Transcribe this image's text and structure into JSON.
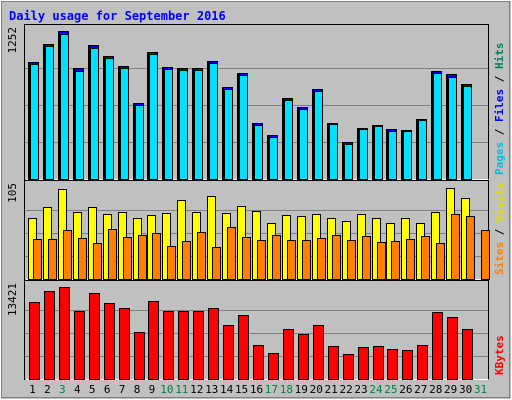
{
  "chart_data": {
    "type": "bar",
    "title": "Daily usage for September 2016",
    "categories": [
      "1",
      "2",
      "3",
      "4",
      "5",
      "6",
      "7",
      "8",
      "9",
      "10",
      "11",
      "12",
      "13",
      "14",
      "15",
      "16",
      "17",
      "18",
      "19",
      "20",
      "21",
      "22",
      "23",
      "24",
      "25",
      "26",
      "27",
      "28",
      "29",
      "30",
      "31"
    ],
    "weekend_days": [
      "3",
      "10",
      "11",
      "17",
      "18",
      "24",
      "25",
      "31"
    ],
    "panels": [
      {
        "name": "hits-files-pages",
        "scale_label": "1252",
        "ymax": 1252,
        "legend": [
          {
            "text": "Pages",
            "color": "#00c0e0"
          },
          {
            "text": " / ",
            "color": "#000000"
          },
          {
            "text": "Files",
            "color": "#0000ff"
          },
          {
            "text": " / ",
            "color": "#000000"
          },
          {
            "text": "Hits",
            "color": "#008060"
          }
        ],
        "series": [
          {
            "name": "Hits",
            "color": "#008080",
            "values": [
              990,
              1140,
              1252,
              935,
              1135,
              1040,
              955,
              640,
              1075,
              945,
              943,
              940,
              995,
              780,
              900,
              470,
              370,
              685,
              605,
              760,
              475,
              310,
              430,
              460,
              420,
              415,
              510,
              915,
              885,
              800,
              null
            ]
          },
          {
            "name": "Files",
            "color": "#0000ff",
            "values": [
              990,
              1140,
              1252,
              935,
              1135,
              1040,
              955,
              640,
              1075,
              945,
              943,
              940,
              995,
              780,
              900,
              470,
              370,
              685,
              605,
              760,
              475,
              310,
              430,
              460,
              420,
              415,
              510,
              915,
              885,
              800,
              null
            ]
          },
          {
            "name": "Pages",
            "color": "#00e0ff",
            "values": [
              975,
              1125,
              1230,
              915,
              1110,
              1020,
              935,
              625,
              1055,
              930,
              925,
              925,
              980,
              765,
              880,
              460,
              355,
              670,
              595,
              745,
              465,
              295,
              420,
              445,
              405,
              405,
              495,
              895,
              860,
              785,
              null
            ]
          }
        ]
      },
      {
        "name": "visits-sites",
        "scale_label": "105",
        "ymax": 105,
        "legend": [
          {
            "text": "Sites",
            "color": "#ff8000"
          },
          {
            "text": " / ",
            "color": "#000000"
          },
          {
            "text": "Visits",
            "color": "#e0e000"
          }
        ],
        "series": [
          {
            "name": "Visits",
            "color": "#ffff00",
            "values": [
              70,
              82,
              103,
              76,
              82,
              74,
              77,
              70,
              73,
              75,
              90,
              76,
              95,
              75,
              83,
              78,
              64,
              73,
              72,
              74,
              70,
              66,
              74,
              70,
              64,
              70,
              64,
              77,
              104,
              92,
              null
            ]
          },
          {
            "name": "Sites",
            "color": "#ff8000",
            "values": [
              46,
              46,
              56,
              47,
              41,
              57,
              48,
              50,
              53,
              38,
              43,
              54,
              36,
              59,
              48,
              44,
              50,
              44,
              44,
              47,
              50,
              45,
              49,
              42,
              43,
              46,
              49,
              41,
              74,
              72,
              56
            ]
          }
        ]
      },
      {
        "name": "kbytes",
        "scale_label": "13421",
        "ymax": 13421,
        "legend": [
          {
            "text": "KBytes",
            "color": "#ff0000"
          }
        ],
        "series": [
          {
            "name": "KBytes",
            "color": "#ff0000",
            "values": [
              11300,
              12800,
              13421,
              9950,
              12500,
              11100,
              10400,
              6900,
              11400,
              9900,
              9900,
              9900,
              10400,
              7900,
              9350,
              4900,
              3750,
              7250,
              6600,
              7950,
              4800,
              3650,
              4650,
              4800,
              4350,
              4300,
              5000,
              9800,
              9100,
              7250,
              null
            ]
          }
        ]
      }
    ],
    "grid": true
  }
}
